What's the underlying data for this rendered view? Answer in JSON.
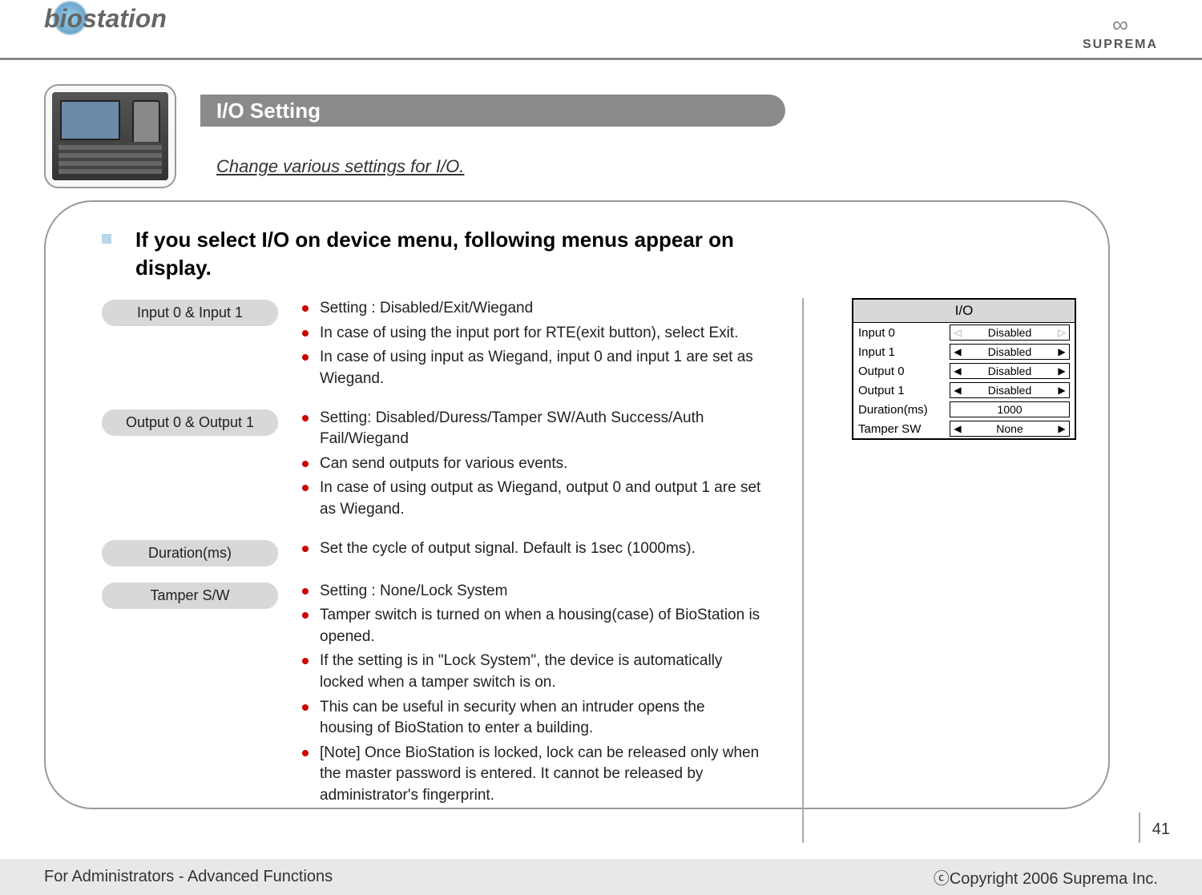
{
  "header": {
    "logo_left_text": "biostation",
    "logo_right_text": "SUPREMA"
  },
  "title_bar": "I/O Setting",
  "subtitle": "Change various settings for I/O.",
  "intro": "If you select I/O on device menu, following menus appear on display.",
  "sections": [
    {
      "pill": "Input 0 & Input 1",
      "items": [
        "Setting : Disabled/Exit/Wiegand",
        "In case of using the input port for RTE(exit button), select Exit.",
        "In case of using input as Wiegand, input 0 and input 1 are set as Wiegand."
      ]
    },
    {
      "pill": "Output 0 & Output 1",
      "items": [
        "Setting: Disabled/Duress/Tamper SW/Auth Success/Auth Fail/Wiegand",
        "Can send outputs for various events.",
        "In case of using output as Wiegand, output 0 and output 1 are set as Wiegand."
      ]
    },
    {
      "pill": "Duration(ms)",
      "items": [
        "Set the cycle of output signal. Default is 1sec (1000ms)."
      ]
    },
    {
      "pill": "Tamper S/W",
      "items": [
        "Setting : None/Lock System",
        "Tamper switch is turned on when a housing(case) of BioStation is opened.",
        "If the setting is in \"Lock System\", the device is automatically locked when a tamper switch is on.",
        "This can be useful in security when an intruder opens the housing of BioStation to enter a building.",
        "[Note] Once BioStation is locked, lock can be released only when the master password is entered. It cannot be released by administrator's fingerprint."
      ]
    }
  ],
  "io_panel": {
    "title": "I/O",
    "rows": [
      {
        "label": "Input 0",
        "value": "Disabled",
        "type": "select",
        "active": false
      },
      {
        "label": "Input 1",
        "value": "Disabled",
        "type": "select",
        "active": true
      },
      {
        "label": "Output 0",
        "value": "Disabled",
        "type": "select",
        "active": true
      },
      {
        "label": "Output 1",
        "value": "Disabled",
        "type": "select",
        "active": true
      },
      {
        "label": "Duration(ms)",
        "value": "1000",
        "type": "input",
        "active": true
      },
      {
        "label": "Tamper SW",
        "value": "None",
        "type": "select",
        "active": true
      }
    ]
  },
  "page_number": "41",
  "footer": {
    "left": "For Administrators - Advanced Functions",
    "right": "ⓒCopyright 2006 Suprema Inc."
  },
  "colors": {
    "title_bar_bg": "#8a8a8a",
    "pill_bg": "#d8d8d8",
    "bullet_dot": "#cc0000",
    "intro_square": "#b8d8e8",
    "border_gray": "#999999",
    "footer_bg": "#e8e8e8"
  }
}
